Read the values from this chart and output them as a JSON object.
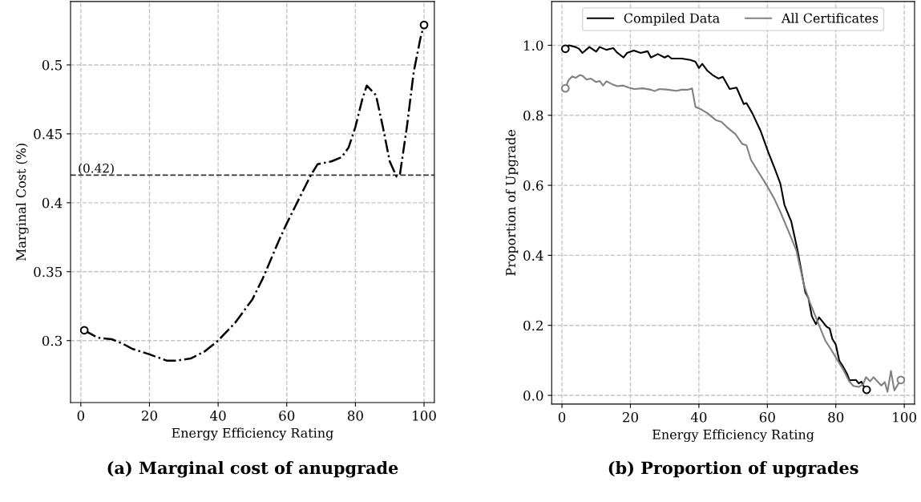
{
  "chart_data": [
    {
      "type": "line",
      "title": "(a) Marginal cost of anupgrade",
      "xlabel": "Energy Efficiency Rating",
      "ylabel": "Marginal Cost (%)",
      "xlim": [
        -3,
        103
      ],
      "xticks": [
        0,
        20,
        40,
        60,
        80,
        100
      ],
      "ylim": [
        0.255,
        0.546
      ],
      "yticks": [
        0.3,
        0.35,
        0.4,
        0.45,
        0.5
      ],
      "grid": true,
      "line_style": "dashdot",
      "legend": false,
      "series": [
        {
          "color": "#000000",
          "x": [
            1,
            5,
            9,
            12,
            15,
            20,
            25,
            28,
            32,
            36,
            40,
            45,
            50,
            53,
            57.6,
            60,
            63,
            67,
            69,
            73,
            76,
            78,
            80,
            82,
            83.3,
            86,
            88,
            90,
            92,
            93,
            95,
            97,
            99,
            100
          ],
          "values": [
            0.3075,
            0.302,
            0.301,
            0.298,
            0.294,
            0.29,
            0.2855,
            0.2855,
            0.287,
            0.292,
            0.3,
            0.313,
            0.33,
            0.345,
            0.372,
            0.385,
            0.4,
            0.42,
            0.428,
            0.43,
            0.433,
            0.44,
            0.455,
            0.475,
            0.485,
            0.478,
            0.455,
            0.43,
            0.419,
            0.421,
            0.455,
            0.495,
            0.52,
            0.529
          ]
        },
        {
          "type": "scatter",
          "marker": "circle",
          "color": "#000000",
          "x": [
            1,
            100
          ],
          "values": [
            0.3075,
            0.529
          ]
        }
      ],
      "ref_lines": [
        {
          "axis": "y",
          "value": 0.42,
          "label": "(0.42)",
          "color": "#333333",
          "line_style": "dashed"
        }
      ]
    },
    {
      "type": "line",
      "title": "(b) Proportion of upgrades",
      "xlabel": "Energy Efficiency Rating",
      "ylabel": "Proportion of Upgrade",
      "xlim": [
        -3,
        103
      ],
      "xticks": [
        0,
        20,
        40,
        60,
        80,
        100
      ],
      "ylim": [
        -0.025,
        1.125
      ],
      "yticks": [
        {
          "value": 0,
          "label": "0.0"
        },
        0.2,
        0.4,
        0.6,
        0.8,
        {
          "value": 1,
          "label": "1.0"
        }
      ],
      "grid": true,
      "line_style": "solid",
      "legend": "top",
      "series": [
        {
          "name": "Compiled Data",
          "color": "#000000",
          "x": [
            1,
            2,
            4,
            5,
            6,
            8,
            10,
            11,
            13,
            15,
            16,
            18,
            19,
            21,
            23,
            25,
            26,
            28,
            30,
            31,
            32,
            35,
            37.5,
            39,
            40,
            41,
            42.5,
            44,
            45.7,
            47,
            49,
            51,
            53.1,
            53.9,
            55.6,
            58,
            60.3,
            62.1,
            63.8,
            65,
            67,
            68.7,
            71.1,
            72,
            73,
            74.2,
            75.1,
            77.3,
            78.2,
            79,
            80,
            81,
            82.2,
            83.4,
            84,
            85.9,
            86.7,
            87.5,
            88,
            89
          ],
          "values": [
            0.99,
            1.0,
            0.995,
            0.99,
            0.978,
            0.995,
            0.982,
            0.995,
            0.987,
            0.992,
            0.98,
            0.965,
            0.978,
            0.985,
            0.978,
            0.983,
            0.965,
            0.975,
            0.965,
            0.97,
            0.962,
            0.962,
            0.958,
            0.953,
            0.935,
            0.947,
            0.927,
            0.915,
            0.905,
            0.91,
            0.875,
            0.879,
            0.832,
            0.835,
            0.806,
            0.756,
            0.694,
            0.649,
            0.605,
            0.544,
            0.496,
            0.42,
            0.294,
            0.278,
            0.226,
            0.203,
            0.223,
            0.196,
            0.191,
            0.161,
            0.145,
            0.099,
            0.081,
            0.059,
            0.043,
            0.044,
            0.034,
            0.039,
            0.028,
            0.016
          ]
        },
        {
          "name": "All Certificates",
          "color": "#808080",
          "x": [
            1,
            1.9,
            3,
            4,
            5.2,
            6,
            7.2,
            8.4,
            10,
            11,
            12,
            13,
            14.6,
            16.2,
            17.9,
            19.5,
            21.1,
            23.6,
            26,
            27,
            28.5,
            31,
            33.4,
            35,
            36.7,
            38,
            39,
            40.8,
            42.5,
            45,
            46.6,
            48.2,
            50.7,
            52.7,
            53.9,
            55.2,
            57.2,
            60,
            62.1,
            63.8,
            66.2,
            68.5,
            70.7,
            72.4,
            75.2,
            76.9,
            78.5,
            80.2,
            82.2,
            83.9,
            85.1,
            86.7,
            88,
            88.8,
            90,
            91,
            92.5,
            93.3,
            94.3,
            95.1,
            96.1,
            97.1,
            98.2,
            99
          ],
          "values": [
            0.877,
            0.9,
            0.911,
            0.907,
            0.915,
            0.913,
            0.902,
            0.905,
            0.895,
            0.898,
            0.885,
            0.897,
            0.889,
            0.883,
            0.885,
            0.879,
            0.875,
            0.877,
            0.873,
            0.869,
            0.875,
            0.873,
            0.87,
            0.873,
            0.873,
            0.877,
            0.824,
            0.816,
            0.806,
            0.786,
            0.781,
            0.766,
            0.746,
            0.718,
            0.714,
            0.673,
            0.641,
            0.597,
            0.56,
            0.524,
            0.468,
            0.413,
            0.315,
            0.266,
            0.198,
            0.157,
            0.133,
            0.105,
            0.073,
            0.04,
            0.027,
            0.024,
            0.032,
            0.052,
            0.04,
            0.052,
            0.036,
            0.028,
            0.038,
            0.01,
            0.07,
            0.014,
            0.032,
            0.044
          ]
        },
        {
          "type": "scatter",
          "marker": "circle",
          "color": "#000000",
          "x": [
            1,
            89
          ],
          "values": [
            0.99,
            0.016
          ]
        },
        {
          "type": "scatter",
          "marker": "circle",
          "color": "#808080",
          "x": [
            1,
            99
          ],
          "values": [
            0.877,
            0.044
          ]
        }
      ]
    }
  ]
}
